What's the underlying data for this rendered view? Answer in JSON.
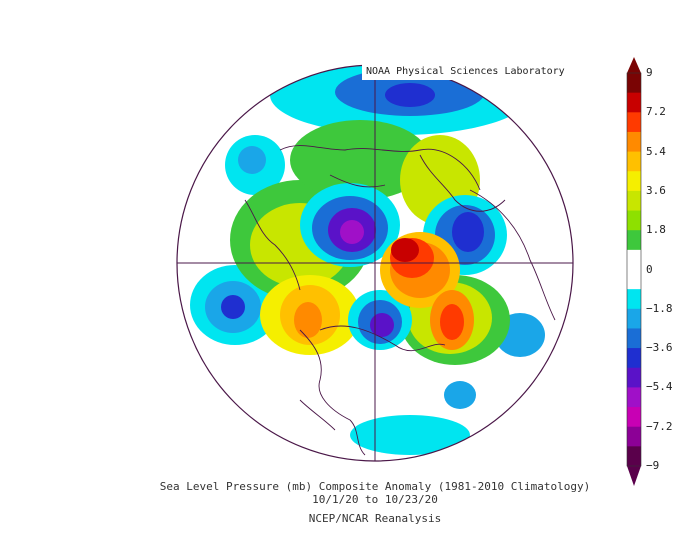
{
  "credit": "NOAA Physical Sciences Laboratory",
  "caption": {
    "line1": "Sea Level Pressure (mb) Composite Anomaly (1981-2010 Climatology)",
    "line2": "10/1/20  to 10/23/20",
    "line3": "NCEP/NCAR Reanalysis"
  },
  "colorbar": {
    "labels": [
      "9",
      "7.2",
      "5.4",
      "3.6",
      "1.8",
      "0",
      "−1.8",
      "−3.6",
      "−5.4",
      "−7.2",
      "−9"
    ],
    "colors": [
      "#7a0404",
      "#c80000",
      "#ff3a00",
      "#ff8a00",
      "#ffc000",
      "#f5ef00",
      "#c8e600",
      "#8ee000",
      "#3ec83c",
      "#ffffff",
      "#ffffff",
      "#00e5f0",
      "#1aa6e8",
      "#1a6ed6",
      "#1f2fd0",
      "#5a12c8",
      "#a010c8",
      "#c800b4",
      "#8c0096",
      "#5a004b"
    ]
  }
}
